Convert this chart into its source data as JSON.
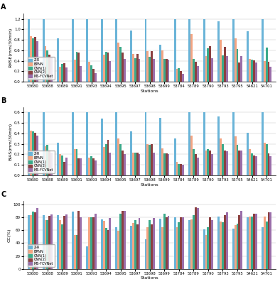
{
  "stations": [
    "53680",
    "53688",
    "53689",
    "53691",
    "53693",
    "53694",
    "53695",
    "53697",
    "53698",
    "53699",
    "53784",
    "53789",
    "53790",
    "53793",
    "53795",
    "54621",
    "54701"
  ],
  "series_labels": [
    "Z-R",
    "BPNN",
    "CNN(1)",
    "CNN(2)",
    "MS-FCVNet"
  ],
  "colors": [
    "#6ab4d8",
    "#f4a582",
    "#3aaa8a",
    "#8b4040",
    "#9b6faa"
  ],
  "panel_A": {
    "ylabel": "RMSE(mm/30min)",
    "ylim": [
      0.0,
      1.3
    ],
    "yticks": [
      0.0,
      0.2,
      0.4,
      0.6,
      0.8,
      1.0,
      1.2
    ],
    "data": {
      "Z-R": [
        1.2,
        1.2,
        0.83,
        1.2,
        1.2,
        1.2,
        1.2,
        0.98,
        1.2,
        0.7,
        1.2,
        1.2,
        1.2,
        1.15,
        1.2,
        0.96,
        1.2
      ],
      "BPNN": [
        0.87,
        0.68,
        0.29,
        0.42,
        0.38,
        0.51,
        0.75,
        0.53,
        0.59,
        0.6,
        0.25,
        0.91,
        0.49,
        0.8,
        0.83,
        0.44,
        0.4
      ],
      "CNN(1)": [
        0.83,
        0.6,
        0.34,
        0.57,
        0.31,
        0.57,
        0.67,
        0.45,
        0.47,
        0.44,
        0.26,
        0.44,
        0.64,
        0.5,
        0.62,
        0.42,
        0.65
      ],
      "CNN(2)": [
        0.85,
        0.52,
        0.35,
        0.55,
        0.25,
        0.55,
        0.55,
        0.53,
        0.58,
        0.44,
        0.2,
        0.38,
        0.68,
        0.67,
        0.37,
        0.41,
        0.38
      ],
      "MS-FCVNet": [
        0.78,
        0.47,
        0.27,
        0.3,
        0.16,
        0.39,
        0.43,
        0.43,
        0.43,
        0.42,
        0.15,
        0.3,
        0.45,
        0.49,
        0.49,
        0.36,
        0.29
      ]
    }
  },
  "panel_B": {
    "ylabel": "BIAS(mm/30min)",
    "ylim": [
      0.0,
      0.65
    ],
    "yticks": [
      0.0,
      0.1,
      0.2,
      0.3,
      0.4,
      0.5,
      0.6
    ],
    "data": {
      "Z-R": [
        0.6,
        0.6,
        0.31,
        0.6,
        0.6,
        0.54,
        0.6,
        0.42,
        0.6,
        0.55,
        0.35,
        0.6,
        0.6,
        0.56,
        0.6,
        0.41,
        0.6
      ],
      "BPNN": [
        0.43,
        0.28,
        0.2,
        0.25,
        0.17,
        0.27,
        0.35,
        0.22,
        0.3,
        0.26,
        0.13,
        0.38,
        0.24,
        0.35,
        0.37,
        0.25,
        0.31
      ],
      "CNN(1)": [
        0.42,
        0.29,
        0.19,
        0.25,
        0.18,
        0.3,
        0.3,
        0.22,
        0.29,
        0.21,
        0.11,
        0.25,
        0.25,
        0.3,
        0.29,
        0.21,
        0.3
      ],
      "CNN(2)": [
        0.41,
        0.24,
        0.13,
        0.16,
        0.16,
        0.34,
        0.24,
        0.22,
        0.3,
        0.21,
        0.11,
        0.2,
        0.24,
        0.24,
        0.24,
        0.19,
        0.21
      ],
      "MS-FCVNet": [
        0.38,
        0.22,
        0.17,
        0.16,
        0.14,
        0.22,
        0.2,
        0.2,
        0.22,
        0.2,
        0.1,
        0.17,
        0.2,
        0.23,
        0.24,
        0.18,
        0.18
      ]
    }
  },
  "panel_C": {
    "ylabel": "CC(%)",
    "ylim": [
      0,
      105
    ],
    "yticks": [
      0,
      20,
      40,
      60,
      80,
      100
    ],
    "data": {
      "Z-R": [
        83,
        83,
        83,
        89,
        35,
        77,
        64,
        67,
        46,
        78,
        80,
        75,
        61,
        81,
        62,
        80,
        65
      ],
      "BPNN": [
        83,
        76,
        76,
        53,
        80,
        74,
        59,
        71,
        64,
        65,
        65,
        77,
        53,
        73,
        68,
        81,
        81
      ],
      "CNN(1)": [
        89,
        75,
        69,
        53,
        80,
        63,
        85,
        75,
        75,
        85,
        72,
        83,
        64,
        72,
        70,
        81,
        73
      ],
      "CNN(2)": [
        87,
        82,
        82,
        90,
        80,
        60,
        90,
        69,
        69,
        80,
        80,
        95,
        80,
        83,
        83,
        85,
        88
      ],
      "MS-FCVNet": [
        94,
        84,
        84,
        80,
        85,
        79,
        90,
        79,
        79,
        82,
        80,
        94,
        75,
        87,
        90,
        85,
        88
      ]
    }
  }
}
